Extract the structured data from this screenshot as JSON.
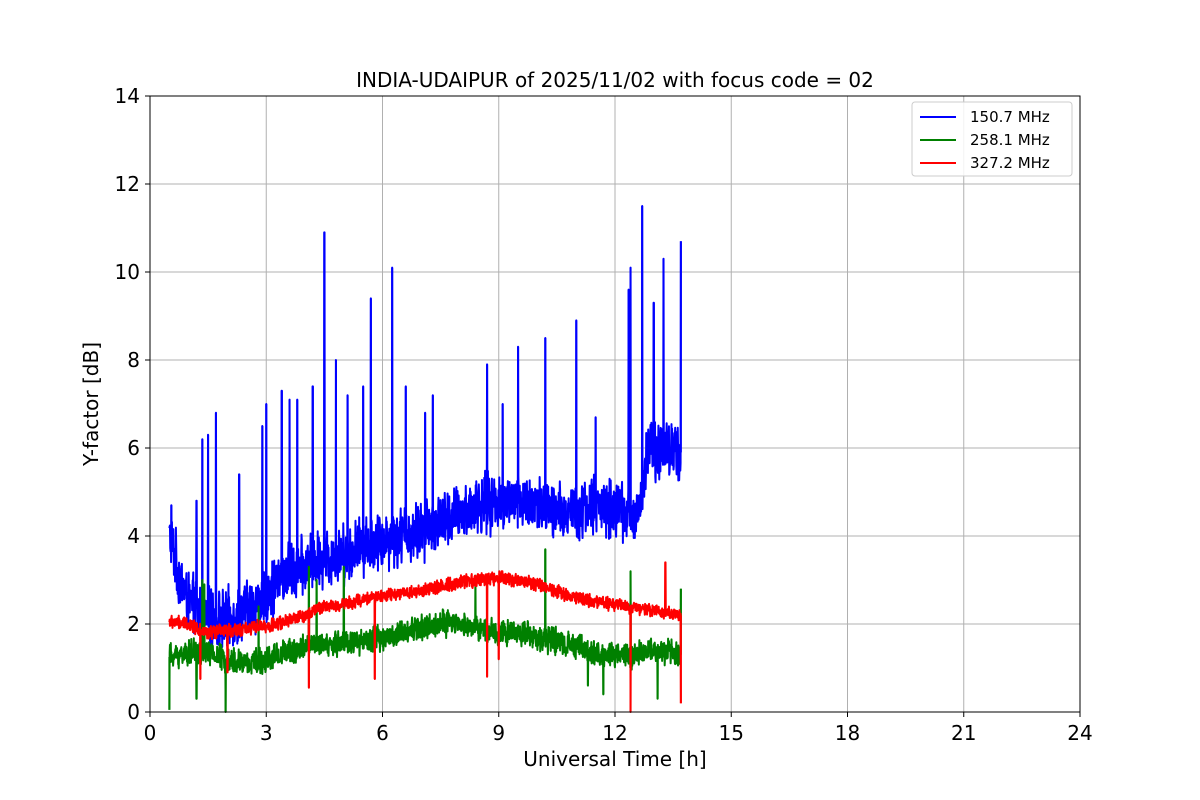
{
  "chart_data": {
    "type": "line",
    "title": "INDIA-UDAIPUR of 2025/11/02 with focus code = 02",
    "xlabel": "Universal Time [h]",
    "ylabel": "Y-factor [dB]",
    "xlim": [
      0,
      24
    ],
    "ylim": [
      0,
      14
    ],
    "xticks": [
      0,
      3,
      6,
      9,
      12,
      15,
      18,
      21,
      24
    ],
    "yticks": [
      0,
      2,
      4,
      6,
      8,
      10,
      12,
      14
    ],
    "grid": true,
    "legend_position": "top-right",
    "series": [
      {
        "name": "150.7 MHz",
        "color": "#0000ff",
        "baseline": {
          "x": [
            0.5,
            0.6,
            0.75,
            1.0,
            1.5,
            2.0,
            2.5,
            3.0,
            3.5,
            4.0,
            4.5,
            5.0,
            5.5,
            6.0,
            6.5,
            7.0,
            7.5,
            8.0,
            8.5,
            9.0,
            9.5,
            10.0,
            10.5,
            11.0,
            11.5,
            12.0,
            12.5,
            12.7,
            12.8,
            13.2,
            13.7
          ],
          "y": [
            4.0,
            3.7,
            3.1,
            2.5,
            2.1,
            2.1,
            2.3,
            2.7,
            3.1,
            3.3,
            3.5,
            3.6,
            3.8,
            3.9,
            4.0,
            4.1,
            4.3,
            4.5,
            4.7,
            4.8,
            4.8,
            4.7,
            4.5,
            4.6,
            4.7,
            4.6,
            4.5,
            4.7,
            5.9,
            6.0,
            5.9
          ]
        },
        "noise_amplitude": 0.8,
        "spikes": [
          {
            "x": 0.55,
            "y": 4.7
          },
          {
            "x": 1.2,
            "y": 4.8
          },
          {
            "x": 1.35,
            "y": 6.2
          },
          {
            "x": 1.5,
            "y": 6.3
          },
          {
            "x": 1.7,
            "y": 6.8
          },
          {
            "x": 2.3,
            "y": 5.4
          },
          {
            "x": 2.9,
            "y": 6.5
          },
          {
            "x": 3.0,
            "y": 7.0
          },
          {
            "x": 3.4,
            "y": 7.3
          },
          {
            "x": 3.6,
            "y": 7.1
          },
          {
            "x": 3.8,
            "y": 7.1
          },
          {
            "x": 4.2,
            "y": 7.4
          },
          {
            "x": 4.5,
            "y": 10.9
          },
          {
            "x": 4.8,
            "y": 8.0
          },
          {
            "x": 5.1,
            "y": 7.2
          },
          {
            "x": 5.5,
            "y": 7.4
          },
          {
            "x": 5.7,
            "y": 9.4
          },
          {
            "x": 6.25,
            "y": 10.1
          },
          {
            "x": 6.6,
            "y": 7.4
          },
          {
            "x": 7.1,
            "y": 6.8
          },
          {
            "x": 7.3,
            "y": 7.2
          },
          {
            "x": 8.7,
            "y": 7.9
          },
          {
            "x": 9.1,
            "y": 7.0
          },
          {
            "x": 9.5,
            "y": 8.3
          },
          {
            "x": 10.2,
            "y": 8.5
          },
          {
            "x": 11.0,
            "y": 8.9
          },
          {
            "x": 11.5,
            "y": 6.7
          },
          {
            "x": 12.35,
            "y": 9.6
          },
          {
            "x": 12.4,
            "y": 10.1
          },
          {
            "x": 12.7,
            "y": 11.5
          },
          {
            "x": 13.0,
            "y": 9.3
          },
          {
            "x": 13.25,
            "y": 10.3
          },
          {
            "x": 13.7,
            "y": 10.7
          }
        ]
      },
      {
        "name": "258.1 MHz",
        "color": "#008000",
        "baseline": {
          "x": [
            0.5,
            1.0,
            1.5,
            2.0,
            2.5,
            3.0,
            3.5,
            4.0,
            4.5,
            5.0,
            5.5,
            6.0,
            6.5,
            7.0,
            7.5,
            8.0,
            8.5,
            9.0,
            9.5,
            10.0,
            10.5,
            11.0,
            11.5,
            12.0,
            12.5,
            13.0,
            13.7
          ],
          "y": [
            1.25,
            1.35,
            1.35,
            1.2,
            1.1,
            1.2,
            1.35,
            1.5,
            1.5,
            1.6,
            1.6,
            1.7,
            1.8,
            1.9,
            2.0,
            2.0,
            1.9,
            1.8,
            1.8,
            1.7,
            1.6,
            1.5,
            1.3,
            1.3,
            1.3,
            1.4,
            1.3
          ]
        },
        "noise_amplitude": 0.35,
        "spikes": [
          {
            "x": 0.5,
            "y": 0.05
          },
          {
            "x": 1.2,
            "y": 0.3
          },
          {
            "x": 1.35,
            "y": 3.0
          },
          {
            "x": 1.4,
            "y": 2.9
          },
          {
            "x": 1.95,
            "y": 0.0
          },
          {
            "x": 2.8,
            "y": 2.4
          },
          {
            "x": 4.1,
            "y": 3.3
          },
          {
            "x": 4.3,
            "y": 3.0
          },
          {
            "x": 5.0,
            "y": 3.3
          },
          {
            "x": 8.4,
            "y": 3.1
          },
          {
            "x": 10.2,
            "y": 3.7
          },
          {
            "x": 11.3,
            "y": 0.6
          },
          {
            "x": 11.7,
            "y": 0.4
          },
          {
            "x": 12.4,
            "y": 3.2
          },
          {
            "x": 13.1,
            "y": 0.3
          },
          {
            "x": 13.7,
            "y": 2.8
          }
        ]
      },
      {
        "name": "327.2 MHz",
        "color": "#ff0000",
        "baseline": {
          "x": [
            0.5,
            1.0,
            1.5,
            2.0,
            2.5,
            3.0,
            3.5,
            4.0,
            4.5,
            5.0,
            5.5,
            6.0,
            6.5,
            7.0,
            7.5,
            8.0,
            8.5,
            9.0,
            9.5,
            10.0,
            10.5,
            11.0,
            11.5,
            12.0,
            12.5,
            13.0,
            13.7
          ],
          "y": [
            2.05,
            2.0,
            1.8,
            1.85,
            1.9,
            1.95,
            2.05,
            2.2,
            2.4,
            2.45,
            2.55,
            2.65,
            2.7,
            2.75,
            2.85,
            2.95,
            3.0,
            3.05,
            3.0,
            2.9,
            2.75,
            2.6,
            2.5,
            2.45,
            2.35,
            2.3,
            2.2
          ]
        },
        "noise_amplitude": 0.18,
        "spikes": [
          {
            "x": 1.3,
            "y": 0.75
          },
          {
            "x": 2.0,
            "y": 0.9
          },
          {
            "x": 4.1,
            "y": 0.55
          },
          {
            "x": 5.8,
            "y": 0.75
          },
          {
            "x": 8.7,
            "y": 0.8
          },
          {
            "x": 9.0,
            "y": 1.2
          },
          {
            "x": 12.4,
            "y": 0.0
          },
          {
            "x": 13.3,
            "y": 3.4
          },
          {
            "x": 13.7,
            "y": 0.2
          }
        ]
      }
    ]
  }
}
